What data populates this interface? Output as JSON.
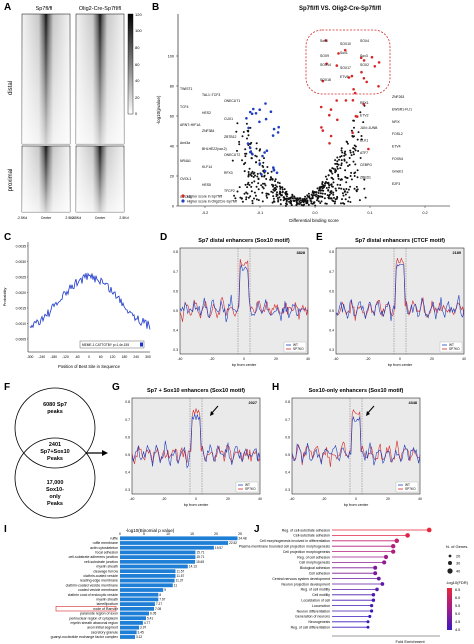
{
  "panels": {
    "A": {
      "label": "A",
      "col_titles": [
        "Sp7fl/fl",
        "Olig2-Cre-Sp7fl/fl"
      ],
      "row_labels": [
        "distal",
        "proximal"
      ],
      "x_ticks": [
        "-2.5Kd",
        "Center",
        "2.5Kd",
        "-2.5Kd",
        "Center",
        "2.5Kd"
      ],
      "colorbar_ticks": [
        "120",
        "100",
        "80",
        "60",
        "40",
        "20",
        "0"
      ]
    },
    "B": {
      "label": "B",
      "title": "Sp7fl/fl  VS. Olig2-Cre-Sp7fl/fl",
      "ylabel": "-log10(pvalue)",
      "xlabel": "Differential binding score",
      "x_ticks": [
        "-0.2",
        "-0.1",
        "0.0",
        "0.1",
        "0.2"
      ],
      "y_ticks": [
        "0",
        "20",
        "40",
        "60",
        "80",
        "100"
      ],
      "legend": [
        "Higher score in Sp7fl/fl",
        "Higher score in Olig2Cre-Sp7fl/fl"
      ],
      "left_genes": [
        "TWIST1",
        "TAL1::TCF3",
        "ONECUT1",
        "TCF4",
        "HES2",
        "CUX1",
        "ARNT::HIF1A",
        "ZNF384",
        "ZBTB12",
        "Arnt3a",
        "BHLHE22(var.2)",
        "ONECUT2",
        "NR4A1",
        "KLF14",
        "RFX3",
        "OVOL1",
        "HES5",
        "TFCP2",
        "OVOL2"
      ],
      "right_genes": [
        "Sox8",
        "SOX10",
        "SOX4",
        "SOX9",
        "Sox1",
        "Sox3",
        "SOX14",
        "SOX17",
        "SOX2",
        "SOX18",
        "ETV6",
        "ZNF263",
        "RFX1",
        "EWSR1-FLI1",
        "ETV2",
        "NFIX",
        "JUN::JUNB",
        "FOSL2",
        "ELK1",
        "ETV4",
        "ATF7",
        "FOXN1",
        "CEBPG",
        "Gmeb1",
        "ZBED1",
        "E2F3"
      ]
    },
    "C": {
      "label": "C",
      "ylabel": "Probability",
      "xlabel": "Position of Best Site in Sequence",
      "y_ticks": [
        "0.0035",
        "0.0030",
        "0.0025",
        "0.0020",
        "0.0015",
        "0.0010",
        "0.0005"
      ],
      "x_ticks": [
        "-300",
        "-240",
        "-180",
        "-120",
        "-60",
        "0",
        "60",
        "120",
        "180",
        "240",
        "300"
      ],
      "legend": "MEME-1 CATTGTBY p=1.4e-155"
    },
    "D": {
      "label": "D",
      "title": "Sp7 distal enhancers (Sox10 motif)",
      "count": "3828",
      "xlabel": "bp from center",
      "y_ticks": [
        "0.8",
        "0.7",
        "0.6",
        "0.5",
        "0.4",
        "0.3"
      ],
      "x_ticks": [
        "-40",
        "-20",
        "0",
        "20",
        "40"
      ],
      "legend": [
        "WT",
        "SP7KO"
      ]
    },
    "E": {
      "label": "E",
      "title": "Sp7 distal enhancers (CTCF motif)",
      "count": "2189",
      "xlabel": "bp from center",
      "y_ticks": [
        "0.8",
        "0.7",
        "0.6",
        "0.5",
        "0.4",
        "0.3"
      ],
      "x_ticks": [
        "-40",
        "-20",
        "0",
        "20",
        "40"
      ],
      "legend": [
        "WT",
        "SP7KO"
      ]
    },
    "F": {
      "label": "F",
      "top": [
        "6080 Sp7",
        "peaks"
      ],
      "mid": [
        "2401",
        "Sp7+Sox10",
        "Peaks"
      ],
      "bottom": [
        "17,000",
        "Sox10-",
        "only",
        "Peaks"
      ]
    },
    "G": {
      "label": "G",
      "title": "Sp7 + Sox10 enhancers (Sox10 motif)",
      "count": "2027",
      "xlabel": "bp from center",
      "y_ticks": [
        "0.8",
        "0.7",
        "0.6",
        "0.5",
        "0.4",
        "0.3"
      ],
      "x_ticks": [
        "-40",
        "-20",
        "0",
        "20",
        "40"
      ],
      "legend": [
        "WT",
        "SP7KO"
      ]
    },
    "H": {
      "label": "H",
      "title": "Sox10-only enhancers (Sox10 motif)",
      "count": "4348",
      "xlabel": "bp from center",
      "y_ticks": [
        "0.8",
        "0.7",
        "0.6",
        "0.5",
        "0.4",
        "0.3"
      ],
      "x_ticks": [
        "-40",
        "-20",
        "0",
        "20",
        "40"
      ],
      "legend": [
        "WT",
        "SP7KO"
      ]
    },
    "I": {
      "label": "I",
      "title": "-log10(Binomial p value)",
      "x_ticks": [
        "0",
        "5",
        "10",
        "15",
        "20",
        "25"
      ]
    },
    "J": {
      "label": "J",
      "xlabel": "Fold Enrichment",
      "legend_size_title": "N. of Genes",
      "legend_sizes": [
        "20",
        "30",
        "40"
      ],
      "legend_color_title": "-log10(FDR)",
      "legend_colors": [
        "4.0",
        "4.5",
        "5.0",
        "5.5",
        "6.0",
        "6.5"
      ]
    }
  },
  "chart_data": [
    {
      "type": "bar",
      "title": "-log10(Binomial p value)",
      "categories": [
        "ruffle",
        "ruffle membrane",
        "actin cytoskeleton",
        "focal adhesion",
        "cell-substrate adherens junction",
        "cell-substrate junction",
        "myelin sheath",
        "cleavage furrow",
        "clathrin-coated vesicle",
        "leading edge membrane",
        "clathrin-coated vesicle membrane",
        "coated vesicle membrane",
        "clathrin coat of endocytic vesicle",
        "myelin sheath",
        "lamellipodium",
        "node of Ranvier",
        "paranode region of axon",
        "perinuclear region of cytoplasm",
        "myelin sheath abaxonal region",
        "axon initial segment",
        "secretory granule",
        "guanyl-nucleotide exchange factor complex"
      ],
      "values": [
        24.48,
        22.52,
        19.57,
        15.71,
        15.71,
        15.65,
        14.13,
        11.57,
        11.57,
        11.37,
        11.0,
        9.0,
        8.0,
        7.97,
        7.27,
        7.08,
        6.05,
        5.41,
        4.77,
        3.97,
        3.45,
        3.12
      ],
      "value_labels": [
        "24.48",
        "22.52",
        "19.57",
        "15.71",
        "15.71",
        "15.65",
        "14.13",
        "11.57",
        "11.57",
        "11.37",
        "11",
        "9",
        "8",
        "7.97",
        "7.27",
        "7.08",
        "6.05",
        "5.41",
        "4.77",
        "3.97",
        "3.45",
        "3.12"
      ],
      "xlim": [
        0,
        25
      ]
    },
    {
      "type": "scatter",
      "xlabel": "Fold Enrichment",
      "categories": [
        "Reg. of cell-substrate adhesion",
        "Cell-substrate adhesion",
        "Cell morphogenesis involved in differentiation",
        "Plasma membrane bounded cell projection morphogenesis",
        "Cell projection morphogenesis",
        "Reg. of cell adhesion",
        "Cell morphogenesis",
        "Biological adhesion",
        "Cell adhesion",
        "Central nervous system development",
        "Neuron projection development",
        "Reg. of cell motility",
        "Cell motility",
        "Localization of cell",
        "Locomotion",
        "Neuron differentiation",
        "Generation of neurons",
        "Neurogenesis",
        "Reg. of cell differentiation"
      ],
      "values": [
        5.4,
        4.2,
        3.6,
        3.4,
        3.4,
        3.0,
        2.9,
        2.4,
        2.4,
        2.6,
        2.8,
        2.5,
        2.3,
        2.3,
        2.2,
        2.2,
        2.1,
        2.0,
        2.0
      ]
    }
  ]
}
